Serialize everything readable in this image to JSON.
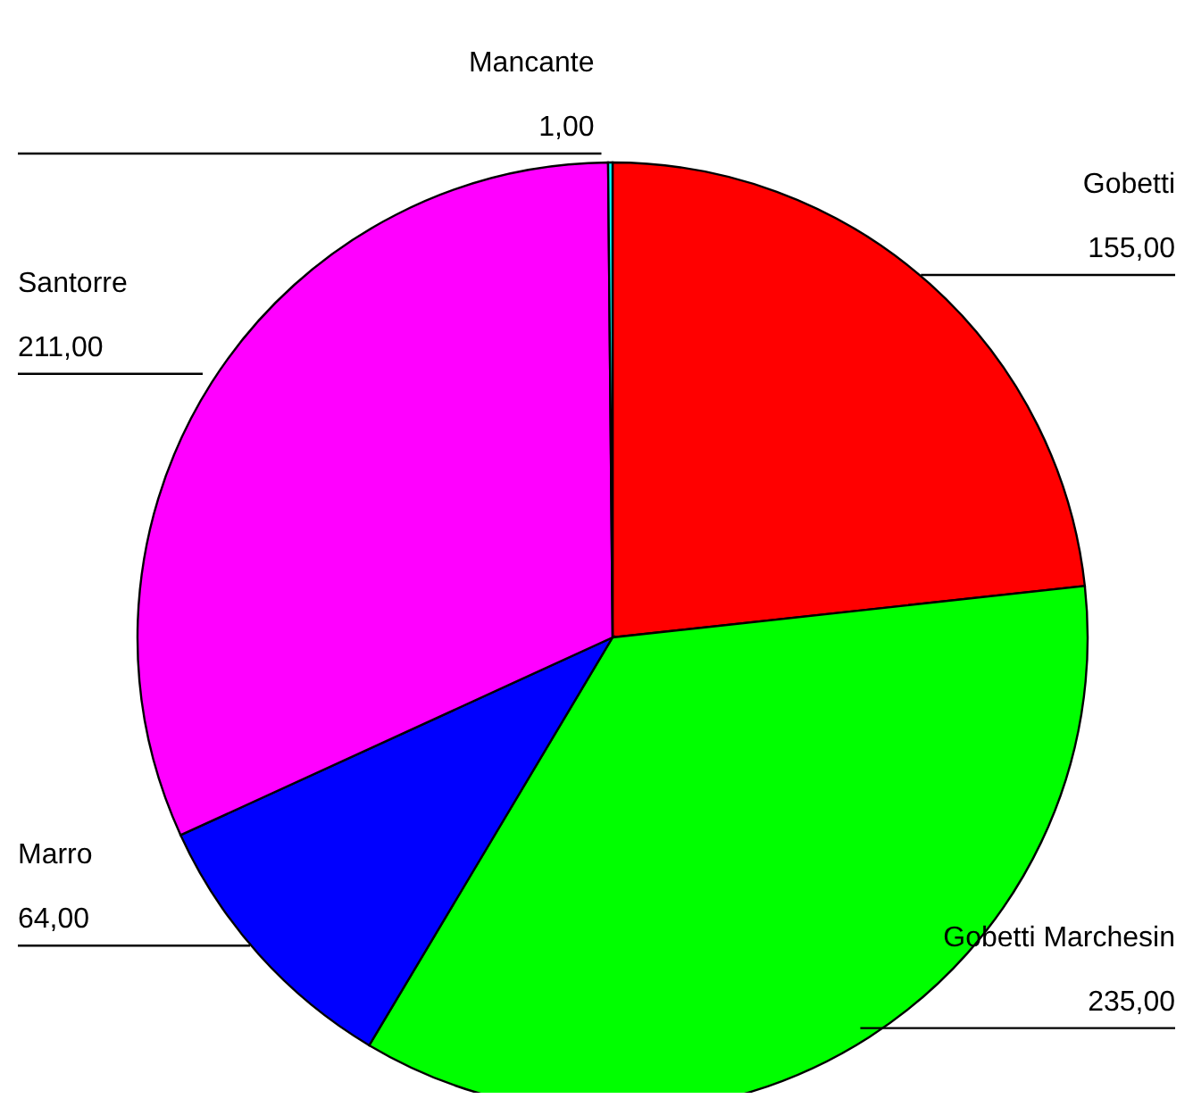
{
  "chart_data": {
    "type": "pie",
    "categories": [
      "Gobetti",
      "Gobetti Marchesin",
      "Marro",
      "Santorre",
      "Mancante"
    ],
    "values": [
      155,
      235,
      64,
      211,
      1
    ],
    "colors": [
      "#ff0000",
      "#00ff00",
      "#0000ff",
      "#ff00ff",
      "#00ffff"
    ],
    "value_labels": [
      "155,00",
      "235,00",
      "64,00",
      "211,00",
      "1,00"
    ],
    "legend": false
  }
}
